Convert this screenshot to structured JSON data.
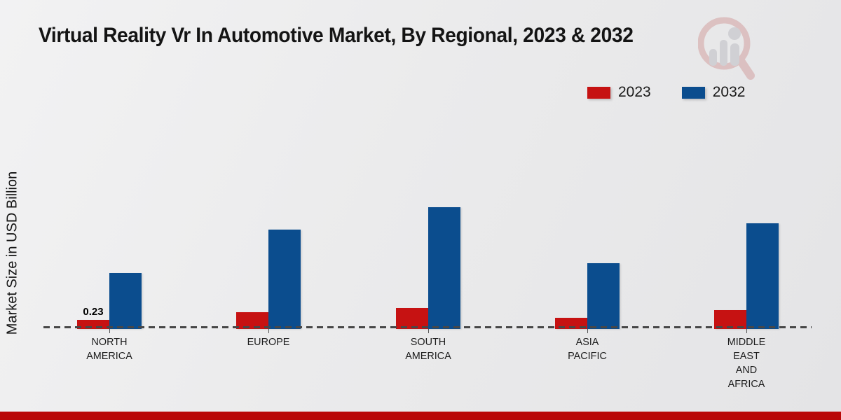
{
  "title": "Virtual Reality Vr In Automotive Market, By Regional, 2023 & 2032",
  "y_axis_label": "Market Size in USD Billion",
  "legend": {
    "items": [
      {
        "label": "2023",
        "color": "#c61212"
      },
      {
        "label": "2032",
        "color": "#0b4d8e"
      }
    ]
  },
  "watermark": {
    "name": "mrfr-magnifier-logo",
    "ring_color": "#d8b4b4",
    "figure_color": "#c9c9cd"
  },
  "footer": {
    "bar_color": "#b90707"
  },
  "chart_data": {
    "type": "bar",
    "title": "Virtual Reality Vr In Automotive Market, By Regional, 2023 & 2032",
    "xlabel": "",
    "ylabel": "Market Size in USD Billion",
    "units": "USD Billion",
    "categories": [
      "NORTH AMERICA",
      "EUROPE",
      "SOUTH AMERICA",
      "ASIA PACIFIC",
      "MIDDLE EAST AND AFRICA"
    ],
    "category_label_lines": [
      [
        "NORTH",
        "AMERICA"
      ],
      [
        "EUROPE"
      ],
      [
        "SOUTH",
        "AMERICA"
      ],
      [
        "ASIA",
        "PACIFIC"
      ],
      [
        "MIDDLE",
        "EAST",
        "AND",
        "AFRICA"
      ]
    ],
    "series": [
      {
        "name": "2023",
        "color": "#c61212",
        "values": [
          0.23,
          0.43,
          0.53,
          0.28,
          0.48
        ],
        "data_labels": [
          "0.23",
          "",
          "",
          "",
          ""
        ]
      },
      {
        "name": "2032",
        "color": "#0b4d8e",
        "values": [
          1.43,
          2.54,
          3.1,
          1.68,
          2.7
        ],
        "data_labels": [
          "",
          "",
          "",
          "",
          ""
        ]
      }
    ],
    "ylim": [
      0,
      3.5
    ],
    "grid": false,
    "baseline": {
      "value": 0,
      "style": "dashed",
      "color": "#474747"
    },
    "legend_position": "top-right",
    "y_ticks_visible": false
  }
}
